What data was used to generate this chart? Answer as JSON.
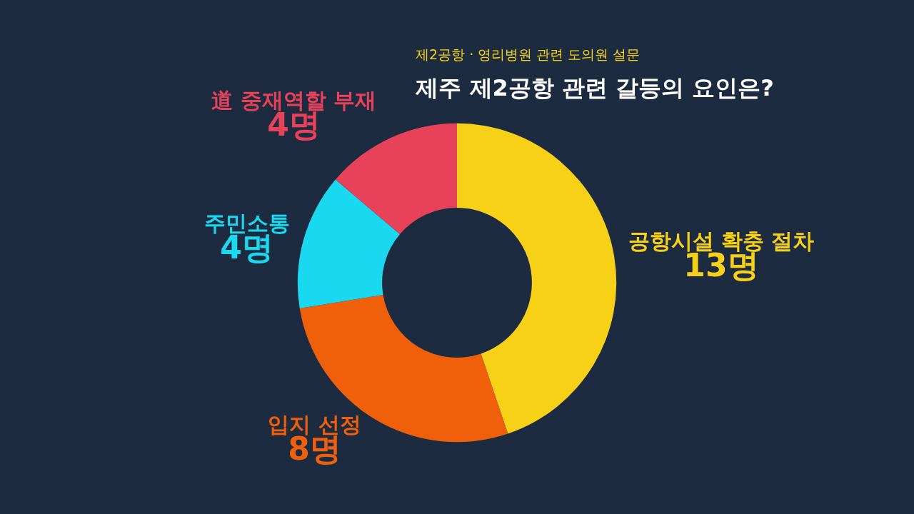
{
  "chart_data": {
    "type": "donut",
    "title": "제주 제2공항 관련 갈등의 요인은?",
    "subtitle": "제2공항 · 영리병원 관련 도의원 설문",
    "categories": [
      "공항시설 확충 절차",
      "입지 선정",
      "주민소통",
      "道 중재역할 부재"
    ],
    "values": [
      13,
      8,
      4,
      4
    ],
    "value_labels": [
      "13명",
      "8명",
      "4명",
      "4명"
    ],
    "colors": [
      "#f7d117",
      "#f0600a",
      "#1ad8f0",
      "#e8425a"
    ]
  }
}
